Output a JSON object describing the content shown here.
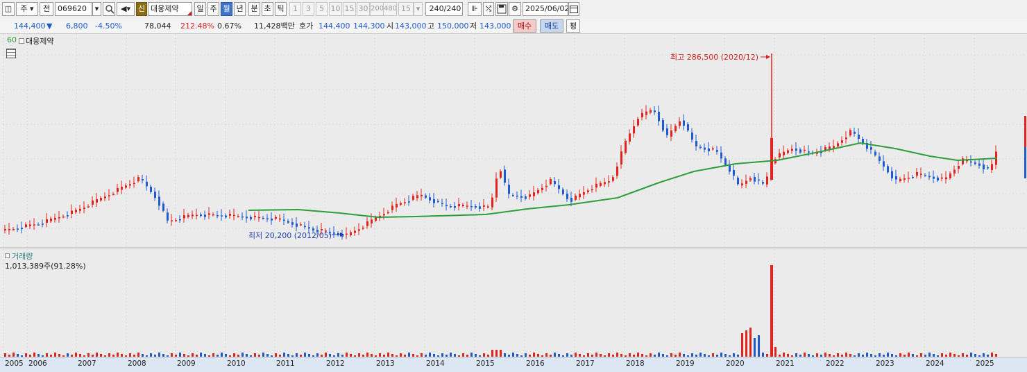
{
  "toolbar": {
    "type_label": "주",
    "jeon_label": "전",
    "stock_code": "069620",
    "badge": "신",
    "stock_name": "대웅제약",
    "period_tabs": [
      "일",
      "주",
      "월",
      "년",
      "분",
      "초",
      "틱"
    ],
    "selected_period": "월",
    "intervals": [
      "1",
      "3",
      "5",
      "10",
      "15",
      "30",
      "200",
      "480"
    ],
    "interval_select": "15",
    "count": "240/240",
    "date": "2025/06/02"
  },
  "info": {
    "price": "144,400",
    "change_arrow": "▼",
    "change": "6,800",
    "change_pct": "-4.50%",
    "volume": "78,044",
    "volume_ratio": "212.48%",
    "turnover": "0.67%",
    "amount": "11,428백만",
    "quote_label": "호가",
    "ask": "144,400",
    "bid": "144,300",
    "open_label": "시",
    "open": "143,000",
    "high_label": "고",
    "high": "150,000",
    "low_label": "저",
    "low": "143,000",
    "buy_button": "매수",
    "sell_button": "매도",
    "avg_button": "평"
  },
  "price_panel": {
    "ma_label": "60",
    "name": "대웅제약",
    "max_annotation": "최고 286,500 (2020/12)",
    "min_annotation": "최저 20,200 (2012/05)"
  },
  "volume_panel": {
    "title": "거래량",
    "value": "1,013,389주(91.28%)"
  },
  "colors": {
    "up": "#e3231c",
    "down": "#1e5bd0",
    "ma": "#2e9e3a",
    "max_text": "#d42020",
    "min_text": "#1f3fae"
  },
  "chart_data": {
    "type": "candlestick",
    "x_axis_years": [
      "2005",
      "2006",
      "2007",
      "2008",
      "2009",
      "2010",
      "2011",
      "2012",
      "2013",
      "2014",
      "2015",
      "2016",
      "2017",
      "2018",
      "2019",
      "2020",
      "2021",
      "2022",
      "2023",
      "2024",
      "2025"
    ],
    "max": {
      "value": 286500,
      "date": "2020/12"
    },
    "min": {
      "value": 20200,
      "date": "2012/05"
    },
    "moving_average_period": 60
  }
}
